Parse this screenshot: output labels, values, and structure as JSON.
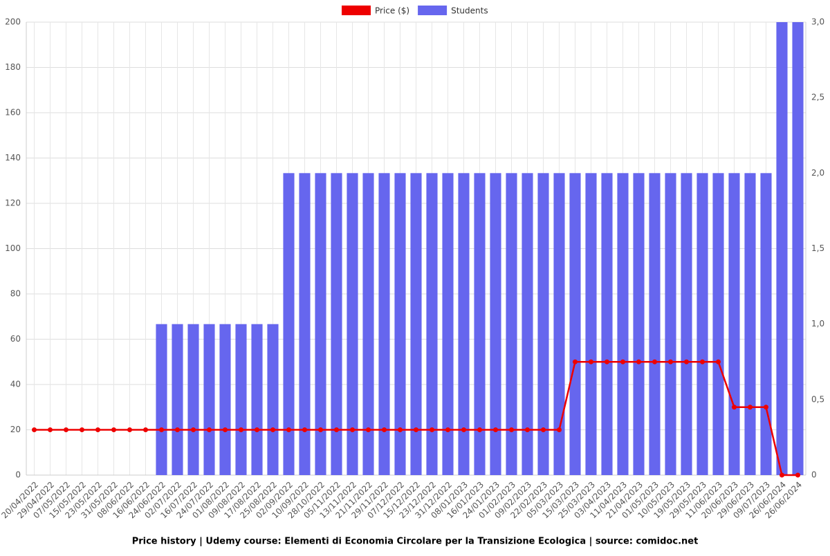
{
  "chart_data": {
    "type": "bar-line",
    "title": "Price history | Udemy course: Elementi di Economia Circolare per la Transizione Ecologica | source: comidoc.net",
    "categories": [
      "20/04/2022",
      "29/04/2022",
      "07/05/2022",
      "15/05/2022",
      "23/05/2022",
      "31/05/2022",
      "08/06/2022",
      "16/06/2022",
      "24/06/2022",
      "02/07/2022",
      "16/07/2022",
      "24/07/2022",
      "01/08/2022",
      "09/08/2022",
      "17/08/2022",
      "25/08/2022",
      "02/09/2022",
      "10/09/2022",
      "28/10/2022",
      "05/11/2022",
      "13/11/2022",
      "21/11/2022",
      "29/11/2022",
      "07/12/2022",
      "15/12/2022",
      "23/12/2022",
      "31/12/2022",
      "08/01/2023",
      "16/01/2023",
      "24/01/2023",
      "01/02/2023",
      "09/02/2023",
      "22/02/2023",
      "05/03/2023",
      "15/03/2023",
      "25/03/2023",
      "03/04/2023",
      "11/04/2023",
      "21/04/2023",
      "01/05/2023",
      "10/05/2023",
      "19/05/2023",
      "29/05/2023",
      "11/06/2023",
      "20/06/2023",
      "29/06/2023",
      "09/07/2023",
      "26/06/2024",
      "26/06/2024"
    ],
    "series": [
      {
        "name": "Price ($)",
        "type": "line",
        "color": "#ee0000",
        "axis": "y",
        "values": [
          20,
          20,
          20,
          20,
          20,
          20,
          20,
          20,
          20,
          20,
          20,
          20,
          20,
          20,
          20,
          20,
          20,
          20,
          20,
          20,
          20,
          20,
          20,
          20,
          20,
          20,
          20,
          20,
          20,
          20,
          20,
          20,
          20,
          20,
          50,
          50,
          50,
          50,
          50,
          50,
          50,
          50,
          50,
          50,
          30,
          30,
          30,
          0,
          0
        ]
      },
      {
        "name": "Students",
        "type": "bar",
        "color": "#6666ee",
        "axis": "y2",
        "values": [
          0,
          0,
          0,
          0,
          0,
          0,
          0,
          0,
          1,
          1,
          1,
          1,
          1,
          1,
          1,
          1,
          2,
          2,
          2,
          2,
          2,
          2,
          2,
          2,
          2,
          2,
          2,
          2,
          2,
          2,
          2,
          2,
          2,
          2,
          2,
          2,
          2,
          2,
          2,
          2,
          2,
          2,
          2,
          2,
          2,
          2,
          2,
          3,
          3
        ]
      }
    ],
    "ylim": [
      0,
      200
    ],
    "yticks": [
      0,
      20,
      40,
      60,
      80,
      100,
      120,
      140,
      160,
      180,
      200
    ],
    "y2lim": [
      0,
      3
    ],
    "y2ticks": [
      0,
      {
        "value": 0.5,
        "label": "0,5"
      },
      {
        "value": 1,
        "label": "1,0"
      },
      {
        "value": 1.5,
        "label": "1,5"
      },
      {
        "value": 2,
        "label": "2,0"
      },
      {
        "value": 2.5,
        "label": "2,5"
      },
      {
        "value": 3,
        "label": "3,0"
      }
    ],
    "grid": true
  }
}
